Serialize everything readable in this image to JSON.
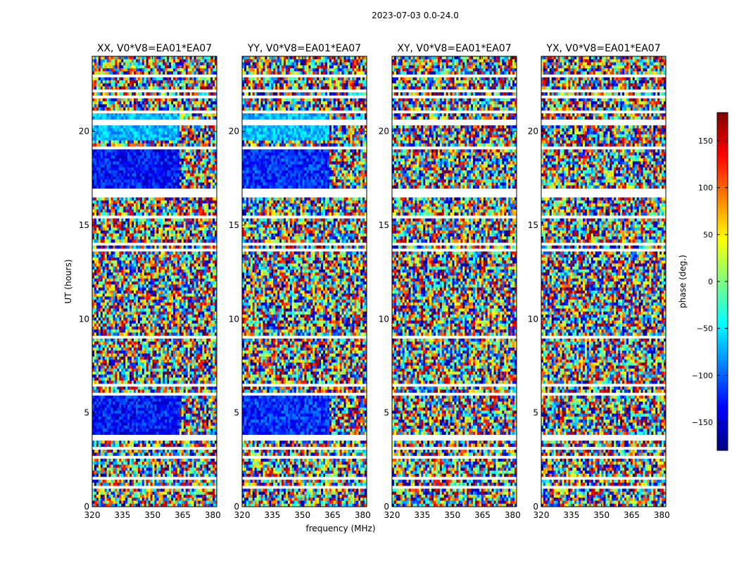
{
  "figure_title": "2023-07-03 0.0-24.0",
  "chart_data": {
    "type": "heatmap",
    "suptitle": "2023-07-03 0.0-24.0",
    "xlabel": "frequency (MHz)",
    "ylabel": "UT (hours)",
    "xlim": [
      320,
      382
    ],
    "ylim": [
      0,
      24
    ],
    "xticks": [
      320,
      335,
      350,
      365,
      380
    ],
    "yticks": [
      0,
      5,
      10,
      15,
      20
    ],
    "colormap": "jet",
    "colorbar": {
      "label": "phase (deg.)",
      "range": [
        -180,
        180
      ],
      "ticks": [
        -150,
        -100,
        -50,
        0,
        50,
        100,
        150
      ],
      "tick_labels": [
        "−150",
        "−100",
        "−50",
        "0",
        "50",
        "100",
        "150"
      ]
    },
    "panels": [
      {
        "title": "XX, V0*V8=EA01*EA07",
        "polarization": "XX",
        "coherent_phase_deg": -130,
        "blue_region_ut": [
          [
            3.8,
            6.0
          ],
          [
            17.0,
            19.0
          ]
        ],
        "green_region_ut": [
          [
            19.5,
            21.0
          ]
        ],
        "frequency_edge_mhz": 363
      },
      {
        "title": "YY, V0*V8=EA01*EA07",
        "polarization": "YY",
        "coherent_phase_deg": -120,
        "blue_region_ut": [
          [
            3.8,
            6.0
          ],
          [
            17.0,
            19.0
          ]
        ],
        "green_region_ut": [
          [
            19.5,
            21.0
          ]
        ],
        "frequency_edge_mhz": 363
      },
      {
        "title": "XY, V0*V8=EA01*EA07",
        "polarization": "XY",
        "coherent_phase_deg": null,
        "blue_region_ut": [],
        "green_region_ut": [],
        "frequency_edge_mhz": null
      },
      {
        "title": "YX, V0*V8=EA01*EA07",
        "polarization": "YX",
        "coherent_phase_deg": null,
        "blue_region_ut": [],
        "green_region_ut": [],
        "frequency_edge_mhz": null
      }
    ],
    "flagged_ut_gaps": [
      [
        0.45,
        0.5
      ],
      [
        1.0,
        1.05
      ],
      [
        1.5,
        1.6
      ],
      [
        2.6,
        2.7
      ],
      [
        3.0,
        3.15
      ],
      [
        3.6,
        3.8
      ],
      [
        6.0,
        6.05
      ],
      [
        6.4,
        6.5
      ],
      [
        7.2,
        7.25
      ],
      [
        7.7,
        7.75
      ],
      [
        8.5,
        8.55
      ],
      [
        9.0,
        9.05
      ],
      [
        9.7,
        9.75
      ],
      [
        11.3,
        11.35
      ],
      [
        13.6,
        13.7
      ],
      [
        14.0,
        14.05
      ],
      [
        15.4,
        15.5
      ],
      [
        16.1,
        16.2
      ],
      [
        16.5,
        16.9
      ],
      [
        19.0,
        19.2
      ],
      [
        20.3,
        20.6
      ],
      [
        21.0,
        21.05
      ],
      [
        21.8,
        21.9
      ],
      [
        22.1,
        22.2
      ],
      [
        22.5,
        22.6
      ],
      [
        22.9,
        23.0
      ]
    ]
  }
}
